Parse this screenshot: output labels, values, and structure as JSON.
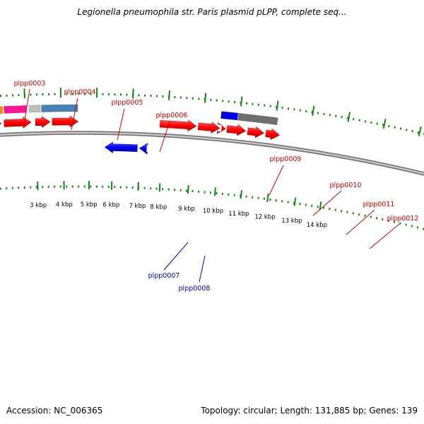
{
  "title": "Legionella pneumophila str. Paris plasmid pLPP, complete seq...",
  "footer": {
    "accession": "Accession: NC_006365",
    "summary": "Topology: circular; Length: 131,885 bp; Genes: 139"
  },
  "tick_labels": [
    "3 kbp",
    "4 kbp",
    "5 kbp",
    "6 kbp",
    "7 kbp",
    "8 kbp",
    "9 kbp",
    "10 kbp",
    "11 kbp",
    "12 kbp",
    "13 kbp",
    "14 kbp"
  ],
  "genes": [
    {
      "id": "plpp0003",
      "color": "#cc0000"
    },
    {
      "id": "plpp0004",
      "color": "#cc0000"
    },
    {
      "id": "plpp0005",
      "color": "#cc0000"
    },
    {
      "id": "plpp0006",
      "color": "#cc0000"
    },
    {
      "id": "plpp0007",
      "color": "#0000cc"
    },
    {
      "id": "plpp0008",
      "color": "#0000cc"
    },
    {
      "id": "plpp0009",
      "color": "#cc0000"
    },
    {
      "id": "plpp0010",
      "color": "#cc0000"
    },
    {
      "id": "plpp0011",
      "color": "#cc0000"
    },
    {
      "id": "plpp0012",
      "color": "#cc0000"
    }
  ],
  "colors": {
    "forward_cds": "#ff0000",
    "reverse_cds": "#0000ee",
    "backbone": "#888888",
    "tick": "#138613",
    "cog_orange": "#ff8c00",
    "cog_pink": "#ff1493",
    "cog_lightgray": "#bebebe",
    "cog_steelblue": "#4682b4",
    "cog_blue": "#0000ee",
    "cog_darkgray": "#6e6e6e"
  }
}
